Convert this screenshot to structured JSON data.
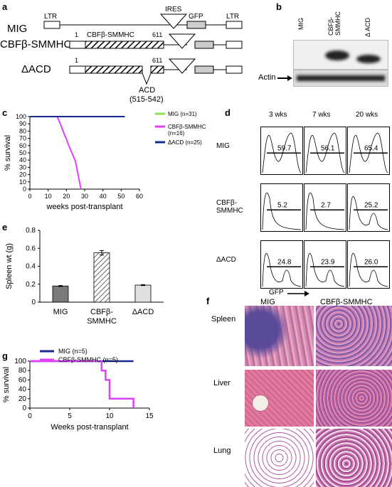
{
  "panel_labels": {
    "a": "a",
    "b": "b",
    "c": "c",
    "d": "d",
    "e": "e",
    "f": "f",
    "g": "g"
  },
  "panel_a": {
    "ltr": "LTR",
    "ires": "IRES",
    "gfp": "GFP",
    "rows": [
      {
        "name": "MIG"
      },
      {
        "name": "CBFβ-SMMHC",
        "start": "1",
        "label": "CBFβ-SMMHC",
        "end": "611"
      },
      {
        "name": "ΔACD",
        "start": "1",
        "end": "611",
        "acd": "ACD",
        "acd_range": "(515-542)"
      }
    ]
  },
  "panel_b": {
    "lanes": [
      "MIG",
      "CBFβ-\nSMMHC",
      "Δ ACD"
    ],
    "actin": "Actin"
  },
  "panel_c": {
    "chart_data": {
      "type": "line",
      "ylabel": "% survival",
      "xlabel": "weeks post-transplant",
      "xlim": [
        0,
        60
      ],
      "ylim": [
        0,
        100
      ],
      "xticks": [
        0,
        10,
        20,
        30,
        40,
        50,
        60
      ],
      "yticks": [
        0,
        10,
        20,
        30,
        40,
        50,
        60,
        70,
        80,
        90,
        100
      ],
      "series": [
        {
          "name": "MIG (n=31)",
          "color": "#8fdc4e",
          "x": [
            0,
            52
          ],
          "y": [
            100,
            100
          ]
        },
        {
          "name": "CBFβ-SMMHC (n=16)",
          "color": "#e040fb",
          "x": [
            0,
            15,
            16,
            17,
            18,
            19,
            20,
            21,
            22,
            23,
            24,
            25,
            26,
            27,
            28
          ],
          "y": [
            100,
            100,
            94,
            88,
            81,
            75,
            69,
            62,
            56,
            50,
            44,
            38,
            25,
            12,
            0
          ]
        },
        {
          "name": "ΔACD (n=25)",
          "color": "#1a2a8c",
          "x": [
            0,
            52
          ],
          "y": [
            100,
            100
          ]
        }
      ]
    }
  },
  "panel_d": {
    "columns": [
      "3 wks",
      "7 wks",
      "20 wks"
    ],
    "rows": [
      {
        "label": "MIG",
        "values": [
          "59.7",
          "56.1",
          "65.4"
        ]
      },
      {
        "label": "CBFβ-\nSMMHC",
        "values": [
          "5.2",
          "2.7",
          "25.2"
        ]
      },
      {
        "label": "ΔACD",
        "values": [
          "24.8",
          "23.9",
          "26.0"
        ]
      }
    ],
    "xaxis": "GFP"
  },
  "panel_e": {
    "chart_data": {
      "type": "bar",
      "ylabel": "Spleen wt (g)",
      "categories": [
        "MIG",
        "CBFβ-\nSMMHC",
        "ΔACD"
      ],
      "values": [
        0.18,
        0.55,
        0.19
      ],
      "errors": [
        0.005,
        0.025,
        0.005
      ],
      "ylim": [
        0,
        0.8
      ],
      "yticks": [
        0,
        0.2,
        0.4,
        0.6,
        0.8
      ],
      "ytick_labels": [
        "0",
        "0.2",
        "0.4",
        "0.6",
        "0.8"
      ],
      "fills": [
        "#7a7a7a",
        "hatch",
        "#e0e0e0"
      ]
    }
  },
  "panel_f": {
    "columns": [
      "MIG",
      "CBFβ-SMMHC"
    ],
    "rows": [
      "Spleen",
      "Liver",
      "Lung"
    ]
  },
  "panel_g": {
    "chart_data": {
      "type": "line",
      "ylabel": "% survival",
      "xlabel": "Weeks post-transplant",
      "xlim": [
        0,
        15
      ],
      "ylim": [
        0,
        100
      ],
      "xticks": [
        0,
        5,
        10,
        15
      ],
      "yticks": [
        0,
        20,
        40,
        60,
        80,
        100
      ],
      "series": [
        {
          "name": "MIG (n=5)",
          "color": "#1a2a8c",
          "x": [
            0,
            13
          ],
          "y": [
            100,
            100
          ]
        },
        {
          "name": "CBFβ-SMMHC (n=5)",
          "color": "#e040fb",
          "x": [
            0,
            9,
            9,
            9.5,
            9.5,
            10,
            10,
            13,
            13
          ],
          "y": [
            100,
            100,
            80,
            80,
            60,
            60,
            20,
            20,
            0
          ]
        }
      ]
    }
  }
}
